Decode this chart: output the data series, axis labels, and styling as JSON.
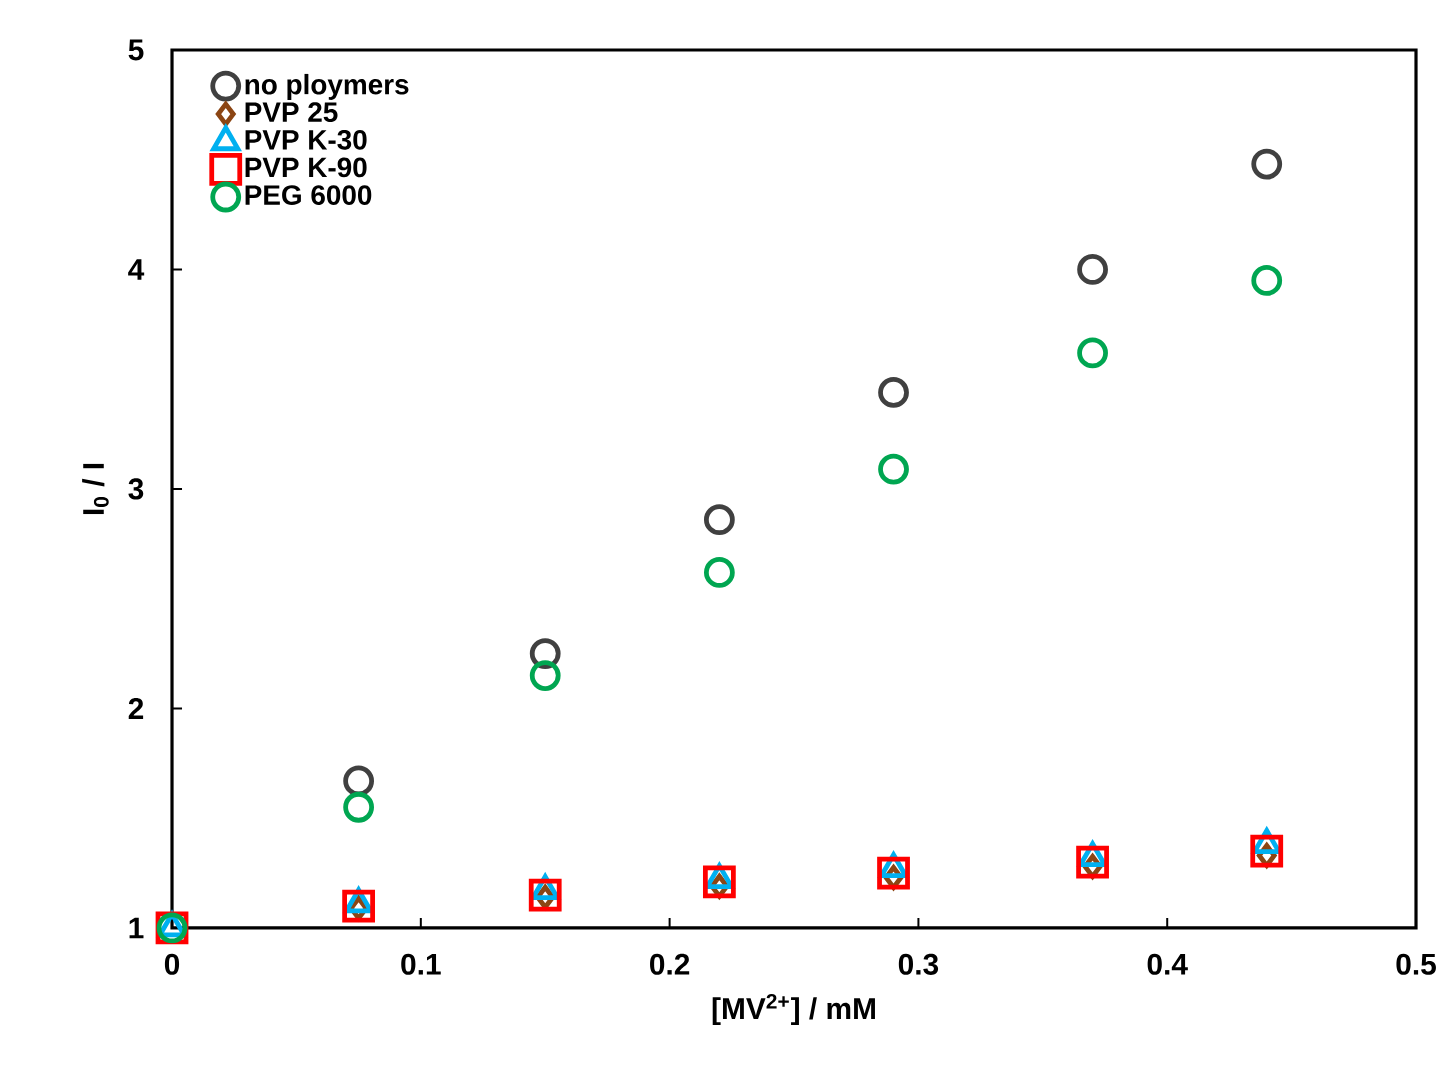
{
  "chart_data": {
    "type": "scatter",
    "xlabel": "[MV$^{2+}$] / mM",
    "ylabel": "I$_{0}$ / I",
    "xlim": [
      0,
      0.5
    ],
    "ylim": [
      1,
      5
    ],
    "xticks": [
      0,
      0.1,
      0.2,
      0.3,
      0.4,
      0.5
    ],
    "yticks": [
      1,
      2,
      3,
      4,
      5
    ],
    "grid": false,
    "legend": "top left",
    "x": [
      0,
      0.075,
      0.15,
      0.22,
      0.29,
      0.37,
      0.44
    ],
    "series": [
      {
        "name": "no ploymers",
        "color": "#404040",
        "marker": "circle",
        "values": [
          null,
          1.67,
          2.25,
          2.86,
          3.44,
          4.0,
          4.48
        ]
      },
      {
        "name": "PVP 25",
        "color": "#8b4513",
        "marker": "diamond",
        "values": [
          null,
          1.09,
          1.14,
          1.19,
          1.23,
          1.28,
          1.33
        ]
      },
      {
        "name": "PVP K-30",
        "color": "#00b0f0",
        "marker": "triangle",
        "values": [
          1,
          1.11,
          1.17,
          1.22,
          1.27,
          1.32,
          1.38
        ]
      },
      {
        "name": "PVP K-90",
        "color": "#ff0000",
        "marker": "square",
        "values": [
          1,
          1.1,
          1.15,
          1.21,
          1.25,
          1.3,
          1.35
        ]
      },
      {
        "name": "PEG 6000",
        "color": "#00a651",
        "marker": "circle",
        "values": [
          1,
          1.55,
          2.15,
          2.62,
          3.09,
          3.62,
          3.95
        ]
      }
    ]
  }
}
